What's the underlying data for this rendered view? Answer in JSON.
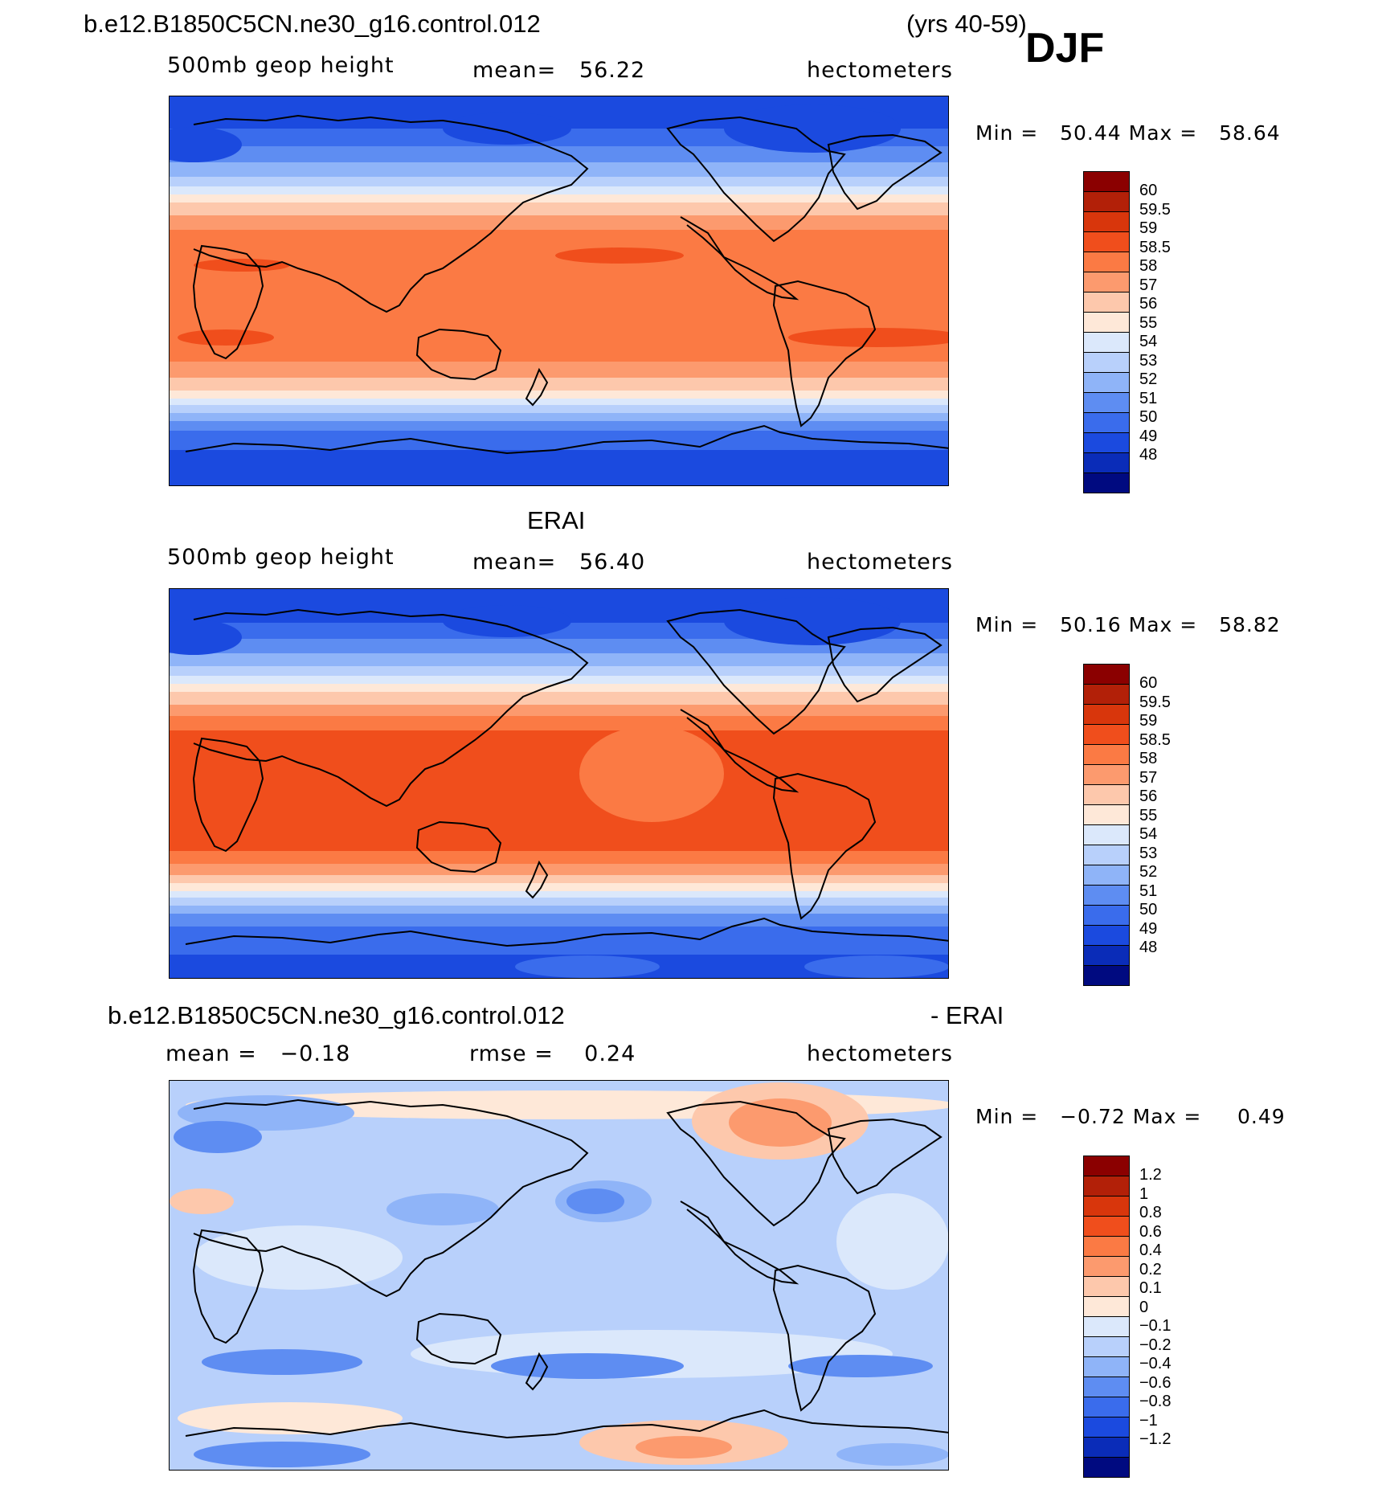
{
  "case_title": "b.e12.B1850C5CN.ne30_g16.control.012",
  "years": "(yrs 40-59)",
  "season": "DJF",
  "panels": [
    {
      "title": "",
      "field": "500mb geop height",
      "stat": "mean=   56.22",
      "units": "hectometers",
      "min_label": "Min =",
      "min_value": "50.44",
      "max_label": "Max =",
      "max_value": "58.64",
      "scheme": "model"
    },
    {
      "title": "ERAI",
      "field": "500mb geop height",
      "stat": "mean=   56.40",
      "units": "hectometers",
      "min_label": "Min =",
      "min_value": "50.16",
      "max_label": "Max =",
      "max_value": "58.82",
      "scheme": "obs"
    },
    {
      "title_left": "b.e12.B1850C5CN.ne30_g16.control.012",
      "title_right": "- ERAI",
      "field": "mean =   −0.18",
      "stat": "rmse =    0.24",
      "units": "hectometers",
      "min_label": "Min =",
      "min_value": "−0.72",
      "max_label": "Max =",
      "max_value": "0.49",
      "scheme": "diff"
    }
  ],
  "legend_abs": {
    "labels": [
      "60",
      "59.5",
      "59",
      "58.5",
      "58",
      "57",
      "56",
      "55",
      "54",
      "53",
      "52",
      "51",
      "50",
      "49",
      "48"
    ],
    "colors": [
      "#8b0000",
      "#b22008",
      "#d8360c",
      "#f04e1c",
      "#fb7a44",
      "#fc9a6e",
      "#fdc8ac",
      "#fee8d8",
      "#dbe8fb",
      "#b8d0fb",
      "#8fb4f8",
      "#5e8df2",
      "#3a6cec",
      "#1b4adf",
      "#0a2cb8",
      "#000a80"
    ]
  },
  "legend_diff": {
    "labels": [
      "1.2",
      "1",
      "0.8",
      "0.6",
      "0.4",
      "0.2",
      "0.1",
      "0",
      "−0.1",
      "−0.2",
      "−0.4",
      "−0.6",
      "−0.8",
      "−1",
      "−1.2"
    ],
    "colors": [
      "#8b0000",
      "#b22008",
      "#d8360c",
      "#f04e1c",
      "#fb7a44",
      "#fc9a6e",
      "#fdc8ac",
      "#fee8d8",
      "#dbe8fb",
      "#b8d0fb",
      "#8fb4f8",
      "#5e8df2",
      "#3a6cec",
      "#1b4adf",
      "#0a2cb8",
      "#000a80"
    ]
  }
}
